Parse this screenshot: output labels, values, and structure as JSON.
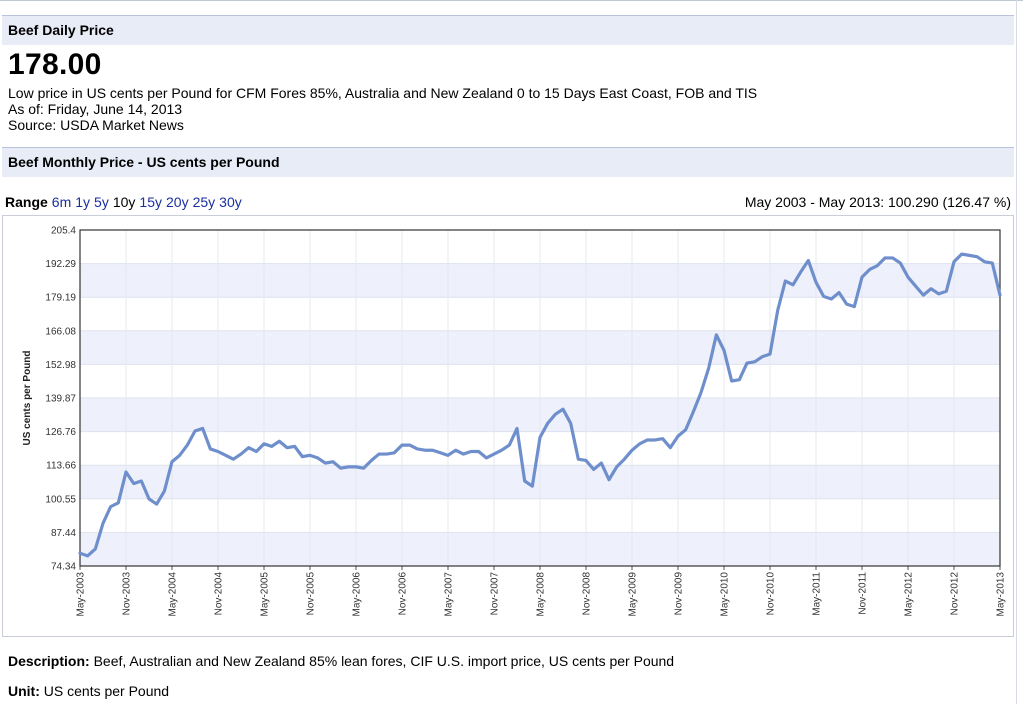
{
  "daily": {
    "bar_title": "Beef Daily Price",
    "price": "178.00",
    "description": "Low price in US cents per Pound for CFM Fores 85%, Australia and New Zealand 0 to 15 Days East Coast, FOB and TIS",
    "as_of": "As of: Friday, June 14, 2013",
    "source": "Source: USDA Market News"
  },
  "monthly": {
    "bar_title": "Beef Monthly Price - US cents per Pound"
  },
  "range": {
    "label": "Range",
    "options": [
      "6m",
      "1y",
      "5y",
      "10y",
      "15y",
      "20y",
      "25y",
      "30y"
    ],
    "selected": "10y",
    "summary": "May 2003 - May 2013: 100.290 (126.47 %)"
  },
  "footer": {
    "description_label": "Description:",
    "description_text": "Beef, Australian and New Zealand 85% lean fores, CIF U.S. import price, US cents per Pound",
    "unit_label": "Unit:",
    "unit_text": "US cents per Pound"
  },
  "chart_data": {
    "type": "line",
    "title": "",
    "ylabel": "US cents per Pound",
    "xlabel": "",
    "ylim": [
      74.34,
      205.4
    ],
    "yticks": [
      "205.4",
      "192.29",
      "179.19",
      "166.08",
      "152.98",
      "139.87",
      "126.76",
      "113.66",
      "100.55",
      "87.44",
      "74.34"
    ],
    "xticks": [
      "May-2003",
      "Nov-2003",
      "May-2004",
      "Nov-2004",
      "May-2005",
      "Nov-2005",
      "May-2006",
      "Nov-2006",
      "May-2007",
      "Nov-2007",
      "May-2008",
      "Nov-2008",
      "May-2009",
      "Nov-2009",
      "May-2010",
      "Nov-2010",
      "May-2011",
      "Nov-2011",
      "May-2012",
      "Nov-2012",
      "May-2013"
    ],
    "grid": true,
    "line_color": "#6f8fcc",
    "series": [
      {
        "values": [
          79.3,
          78.3,
          81.0,
          91.0,
          97.5,
          99.0,
          111.0,
          106.5,
          107.5,
          100.5,
          98.5,
          103.5,
          115.0,
          117.5,
          121.5,
          127.0,
          128.0,
          120.0,
          119.0,
          117.5,
          116.0,
          118.0,
          120.5,
          119.0,
          122.0,
          121.0,
          123.0,
          120.5,
          121.0,
          117.0,
          117.5,
          116.5,
          114.5,
          115.0,
          112.5,
          113.0,
          113.0,
          112.5,
          115.5,
          118.0,
          118.0,
          118.5,
          121.5,
          121.5,
          120.0,
          119.5,
          119.5,
          118.5,
          117.5,
          119.5,
          118.0,
          119.0,
          119.0,
          116.5,
          118.0,
          119.5,
          121.5,
          128.0,
          107.5,
          105.5,
          124.5,
          130.0,
          133.5,
          135.5,
          130.0,
          116.0,
          115.5,
          112.0,
          114.5,
          108.0,
          113.0,
          116.0,
          119.5,
          122.0,
          123.5,
          123.5,
          124.0,
          120.5,
          125.0,
          127.5,
          134.5,
          142.0,
          151.5,
          164.5,
          158.5,
          146.5,
          147.0,
          153.5,
          154.0,
          156.0,
          157.0,
          174.0,
          185.5,
          184.0,
          189.0,
          193.5,
          185.0,
          179.5,
          178.5,
          181.0,
          176.5,
          175.5,
          187.0,
          190.0,
          191.5,
          194.5,
          194.5,
          192.5,
          187.0,
          183.5,
          180.0,
          182.5,
          180.5,
          181.5,
          193.0,
          196.0,
          195.5,
          195.0,
          193.0,
          192.5,
          180.0
        ]
      }
    ]
  }
}
